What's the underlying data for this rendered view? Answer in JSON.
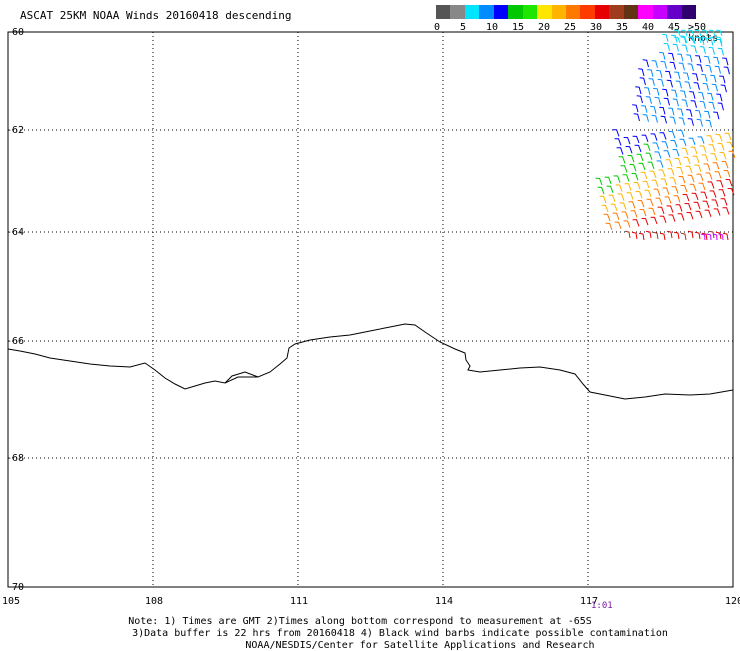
{
  "title": "ASCAT 25KM NOAA Winds 20160418 descending",
  "colorbar": {
    "colors": [
      "#555555",
      "#888888",
      "#00e5ff",
      "#008cff",
      "#0000ff",
      "#00c800",
      "#1ee600",
      "#ffe600",
      "#ffb400",
      "#ff7800",
      "#ff3c00",
      "#e60000",
      "#a03c1e",
      "#643214",
      "#ff00ff",
      "#c800ff",
      "#6400c8",
      "#30006e"
    ],
    "labels": [
      "0",
      "5",
      "10",
      "15",
      "20",
      "25",
      "30",
      "35",
      "40",
      "45"
    ],
    "unit_label": ">50 knots"
  },
  "map": {
    "lon_range": [
      105,
      120
    ],
    "lat_range": [
      -70,
      -60
    ],
    "lon_ticks": [
      "105",
      "108",
      "111",
      "114",
      "117",
      "120"
    ],
    "lat_ticks": [
      "-60",
      "-62",
      "-64",
      "-66",
      "-68",
      "-70"
    ],
    "time_label": "1:01",
    "grid": "dotted"
  },
  "notes": [
    "Note: 1) Times are GMT 2)Times along bottom correspond to measurement at -65S",
    "3)Data buffer is 22 hrs from 20160418 4) Black wind barbs indicate possible contamination",
    "NOAA/NESDIS/Center for Satellite Applications and Research"
  ]
}
